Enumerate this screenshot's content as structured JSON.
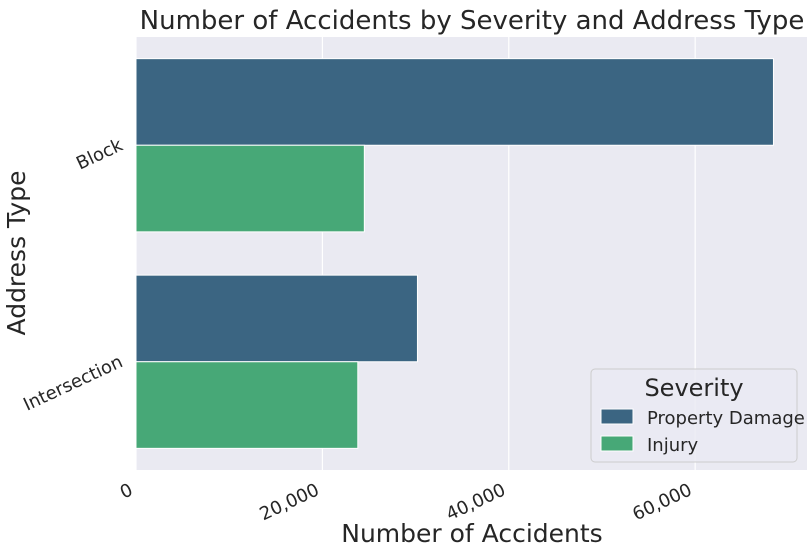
{
  "chart_data": {
    "type": "bar",
    "orientation": "horizontal",
    "title": "Number of Accidents by Severity and Address Type",
    "xlabel": "Number of Accidents",
    "ylabel": "Address Type",
    "categories": [
      "Block",
      "Intersection"
    ],
    "series": [
      {
        "name": "Property Damage",
        "values": [
          68400,
          30200
        ],
        "color": "#3b6582"
      },
      {
        "name": "Injury",
        "values": [
          24500,
          23800
        ],
        "color": "#47a877"
      }
    ],
    "xlim": [
      0,
      72000
    ],
    "xticks": [
      0,
      20000,
      40000,
      60000
    ],
    "xtick_labels": [
      "0",
      "20,000",
      "40,000",
      "60,000"
    ],
    "grid": true,
    "legend": {
      "title": "Severity",
      "position": "lower-right"
    },
    "background": "#eaeaf2"
  }
}
